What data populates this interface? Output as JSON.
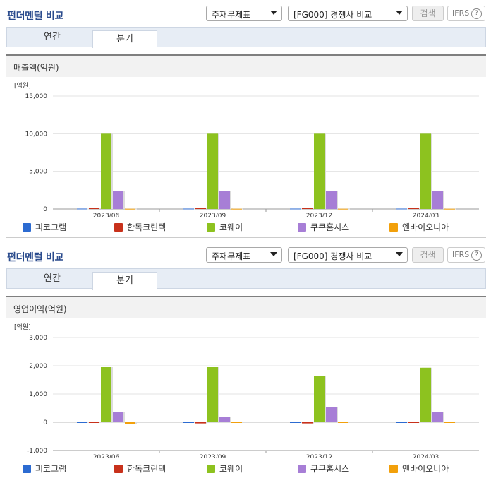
{
  "panels": [
    {
      "title": "펀더멘털 비교",
      "select1": "주재무제표",
      "select2": "[FG000] 경쟁사 비교",
      "search_label": "검색",
      "ifrs_label": "IFRS",
      "ifrs_help": "?",
      "tabs": [
        "연간",
        "분기"
      ],
      "active_tab": 1,
      "subtitle": "매출액(억원)"
    },
    {
      "title": "펀더멘털 비교",
      "select1": "주재무제표",
      "select2": "[FG000] 경쟁사 비교",
      "search_label": "검색",
      "ifrs_label": "IFRS",
      "ifrs_help": "?",
      "tabs": [
        "연간",
        "분기"
      ],
      "active_tab": 1,
      "subtitle": "영업이익(억원)"
    }
  ],
  "colors": {
    "series": [
      "#2c6bd1",
      "#c8311b",
      "#8dc21f",
      "#a77ed6",
      "#f2a00b"
    ]
  },
  "chart_data": [
    {
      "type": "bar",
      "unit_label": "[억원]",
      "categories": [
        "2023/06",
        "2023/09",
        "2023/12",
        "2024/03"
      ],
      "ylim": [
        0,
        15000
      ],
      "yticks": [
        0,
        5000,
        10000,
        15000
      ],
      "ytick_labels": [
        "0",
        "5,000",
        "10,000",
        "15,000"
      ],
      "series": [
        {
          "name": "피코그램",
          "values": [
            50,
            50,
            50,
            50
          ]
        },
        {
          "name": "한독크린텍",
          "values": [
            150,
            150,
            120,
            150
          ]
        },
        {
          "name": "코웨이",
          "values": [
            10000,
            10000,
            10000,
            10000
          ]
        },
        {
          "name": "쿠쿠홈시스",
          "values": [
            2400,
            2400,
            2400,
            2400
          ]
        },
        {
          "name": "엔바이오니아",
          "values": [
            30,
            30,
            30,
            30
          ]
        }
      ]
    },
    {
      "type": "bar",
      "unit_label": "[억원]",
      "categories": [
        "2023/06",
        "2023/09",
        "2023/12",
        "2024/03"
      ],
      "ylim": [
        -1000,
        3000
      ],
      "yticks": [
        -1000,
        0,
        1000,
        2000,
        3000
      ],
      "ytick_labels": [
        "-1,000",
        "0",
        "1,000",
        "2,000",
        "3,000"
      ],
      "series": [
        {
          "name": "피코그램",
          "values": [
            0,
            0,
            0,
            0
          ]
        },
        {
          "name": "한독크린텍",
          "values": [
            0,
            -40,
            -40,
            0
          ]
        },
        {
          "name": "코웨이",
          "values": [
            1950,
            1950,
            1650,
            1930
          ]
        },
        {
          "name": "쿠쿠홈시스",
          "values": [
            370,
            200,
            540,
            350
          ]
        },
        {
          "name": "엔바이오니아",
          "values": [
            -50,
            0,
            0,
            0
          ]
        }
      ]
    }
  ]
}
